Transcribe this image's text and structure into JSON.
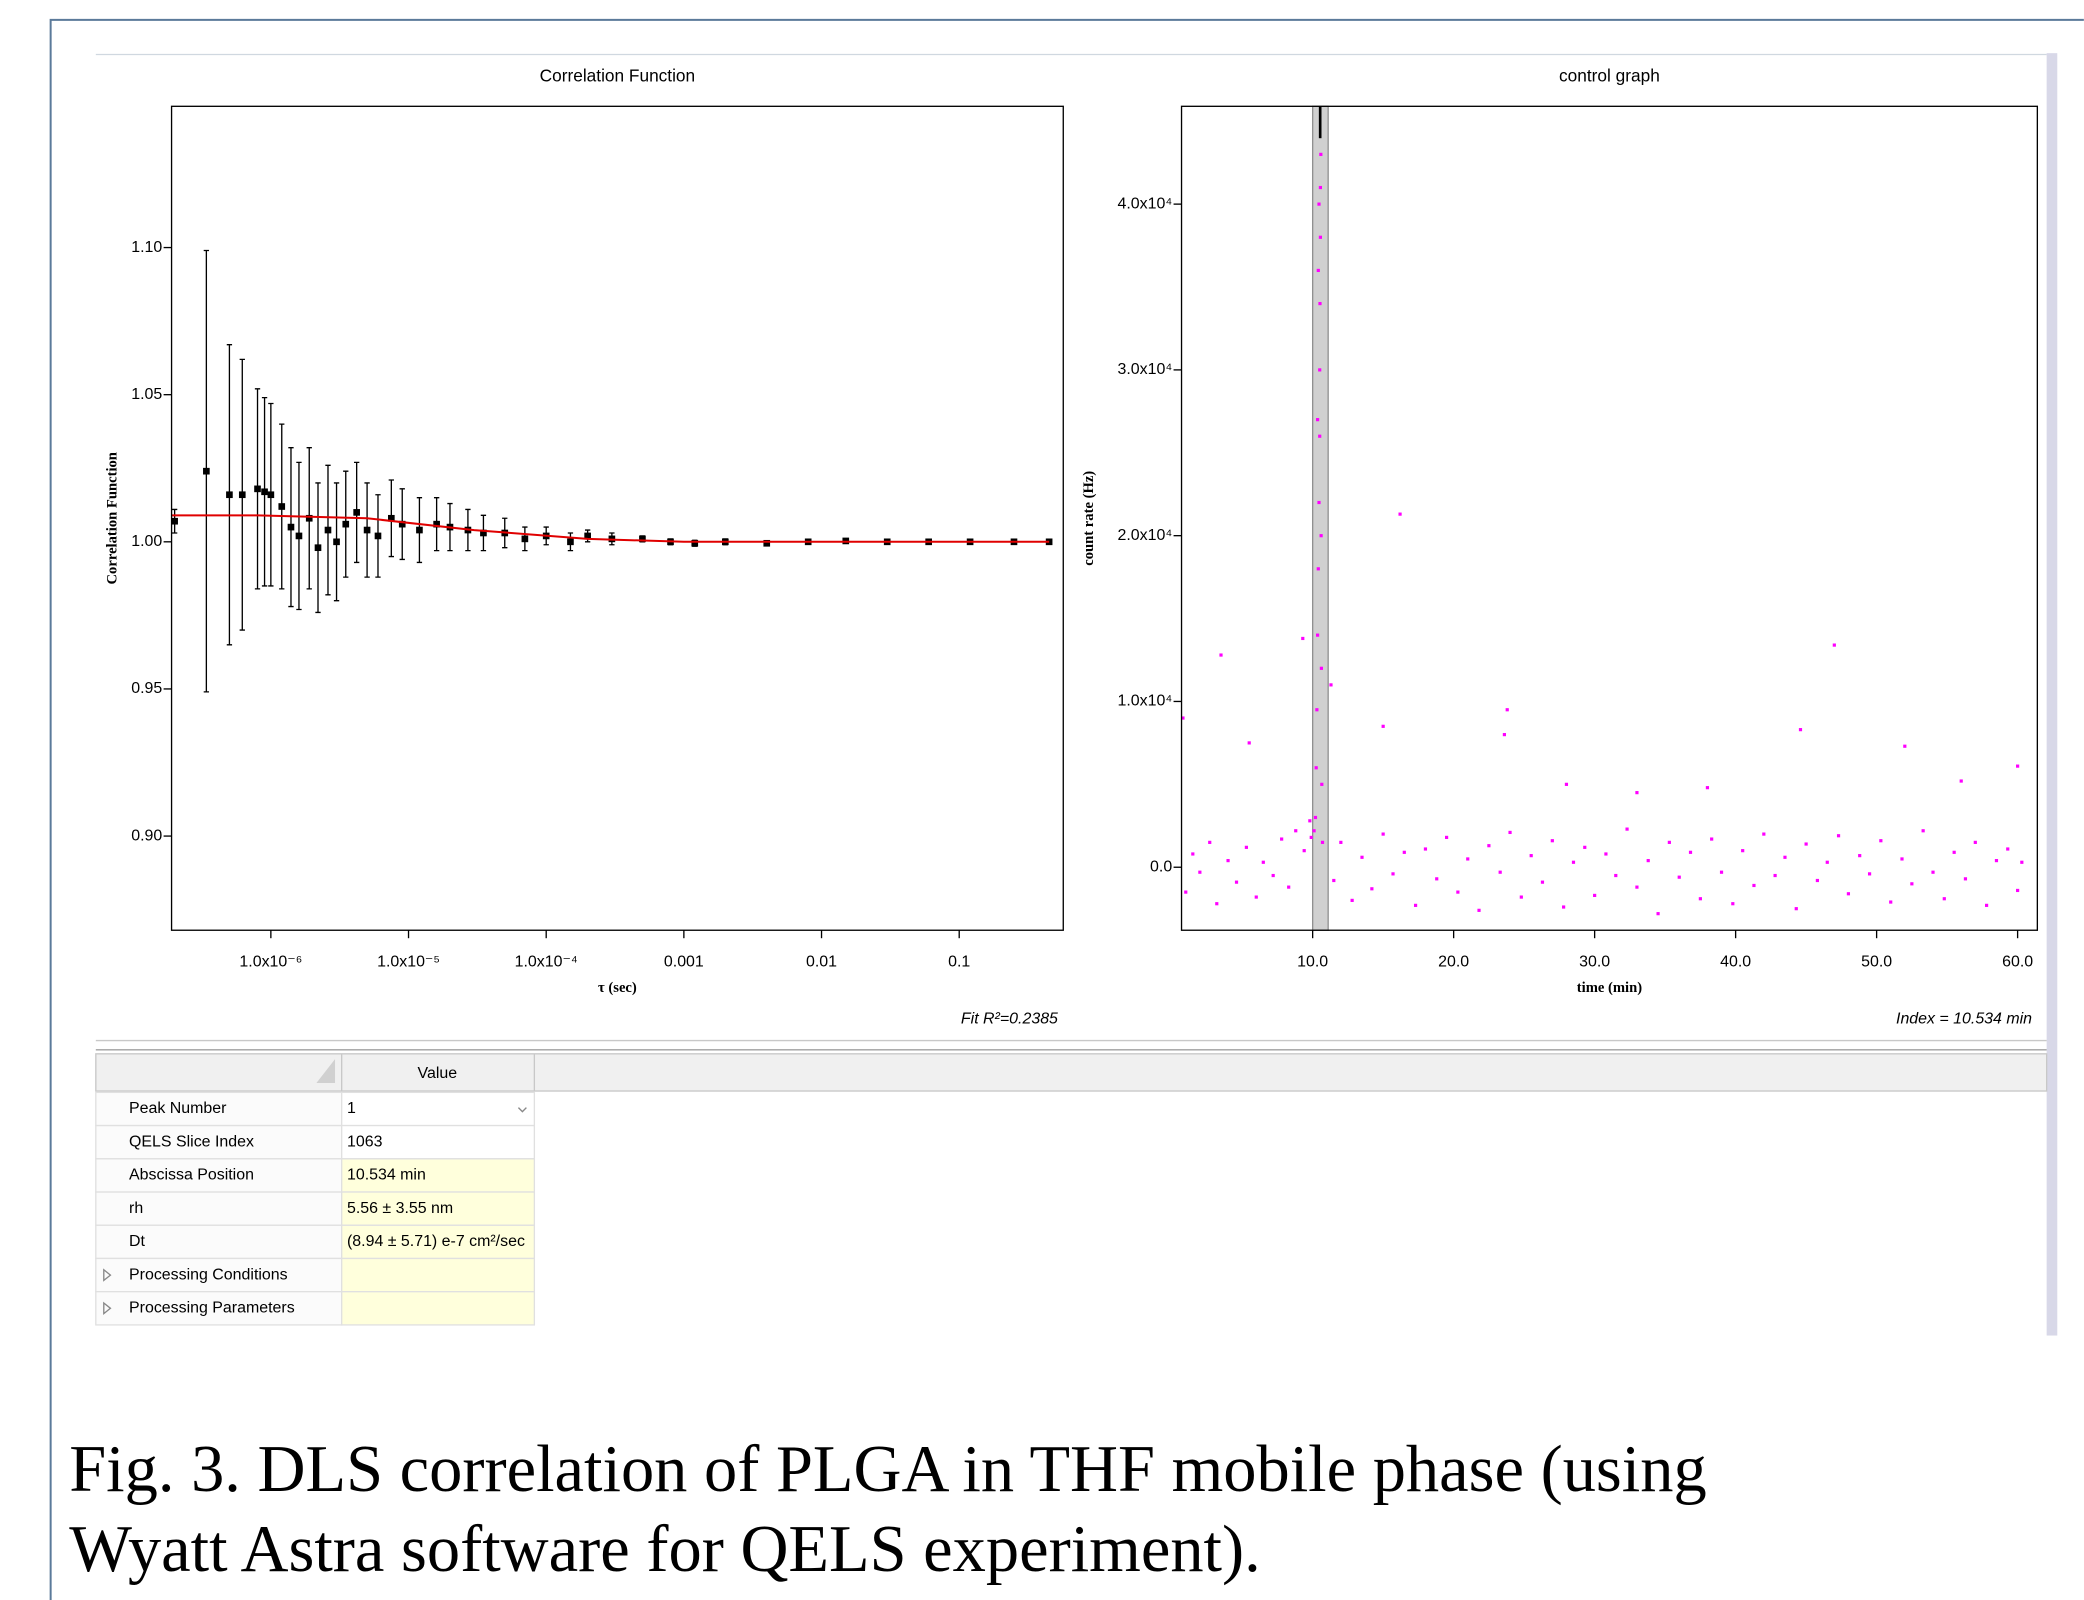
{
  "chart_data": [
    {
      "type": "scatter",
      "title": "Correlation Function",
      "x_label": "τ (sec)",
      "y_label": "Correlation Function",
      "annotation": "Fit R²=0.2385",
      "xlog": true,
      "xlim": [
        1.9e-07,
        0.57
      ],
      "ylim": [
        0.868,
        1.148
      ],
      "xticks": [
        {
          "value": 1e-06,
          "label": "1.0x10⁻⁶"
        },
        {
          "value": 1e-05,
          "label": "1.0x10⁻⁵"
        },
        {
          "value": 0.0001,
          "label": "1.0x10⁻⁴"
        },
        0.001,
        0.01,
        0.1
      ],
      "yticks": [
        {
          "value": 0.9,
          "label": "0.90"
        },
        0.95,
        {
          "value": 1,
          "label": "1.00"
        },
        1.05,
        {
          "value": 1.1,
          "label": "1.10"
        }
      ],
      "series": [
        {
          "color": "#000000",
          "x": [
            2e-07,
            3.4e-07,
            5e-07,
            6.2e-07,
            8e-07,
            9e-07,
            1e-06,
            1.2e-06,
            1.4e-06,
            1.6e-06,
            1.9e-06,
            2.2e-06,
            2.6e-06,
            3e-06,
            3.5e-06,
            4.2e-06,
            5e-06,
            6e-06,
            7.5e-06,
            9e-06,
            1.2e-05,
            1.6e-05,
            2e-05,
            2.7e-05,
            3.5e-05,
            5e-05,
            7e-05,
            0.0001,
            0.00015,
            0.0002,
            0.0003,
            0.0005,
            0.0008,
            0.0012,
            0.002,
            0.004,
            0.008,
            0.015,
            0.03,
            0.06,
            0.12,
            0.25,
            0.45
          ],
          "values": [
            1.007,
            1.024,
            1.016,
            1.016,
            1.018,
            1.017,
            1.016,
            1.012,
            1.005,
            1.002,
            1.008,
            0.998,
            1.004,
            1.0,
            1.006,
            1.01,
            1.004,
            1.002,
            1.008,
            1.006,
            1.004,
            1.006,
            1.005,
            1.004,
            1.003,
            1.003,
            1.001,
            1.002,
            1.0,
            1.002,
            1.001,
            1.001,
            1.0,
            0.9995,
            1.0,
            0.9995,
            1.0,
            1.0003,
            1.0,
            1.0,
            1.0,
            1.0,
            1.0
          ],
          "errors": [
            0.004,
            0.075,
            0.051,
            0.046,
            0.034,
            0.032,
            0.031,
            0.028,
            0.027,
            0.025,
            0.024,
            0.022,
            0.022,
            0.02,
            0.018,
            0.017,
            0.016,
            0.014,
            0.013,
            0.012,
            0.011,
            0.009,
            0.008,
            0.007,
            0.006,
            0.005,
            0.004,
            0.003,
            0.003,
            0.002,
            0.002,
            0.001,
            0.001,
            0.001,
            0.001,
            0.0005,
            0.0005,
            0.0005,
            0.0005,
            0.0005,
            0.0005,
            0.0005,
            0.0005
          ]
        },
        {
          "mode": "line",
          "color": "#e00000",
          "x": [
            1.9e-07,
            8e-07,
            5e-06,
            3e-05,
            0.0002,
            0.001,
            0.45
          ],
          "values": [
            1.009,
            1.009,
            1.008,
            1.004,
            1.001,
            1.0,
            1.0
          ]
        }
      ]
    },
    {
      "type": "scatter",
      "title": "control graph",
      "x_label": "time (min)",
      "y_label": "count rate (Hz)",
      "annotation": "Index = 10.534 min",
      "xlim": [
        0.7,
        61.4
      ],
      "ylim": [
        -3800,
        45900
      ],
      "xticks": [
        {
          "value": 10,
          "label": "10.0"
        },
        {
          "value": 20,
          "label": "20.0"
        },
        {
          "value": 30,
          "label": "30.0"
        },
        {
          "value": 40,
          "label": "40.0"
        },
        {
          "value": 50,
          "label": "50.0"
        },
        {
          "value": 60,
          "label": "60.0"
        }
      ],
      "yticks": [
        {
          "value": 0,
          "label": "0.0"
        },
        {
          "value": 10000,
          "label": "1.0x10⁴"
        },
        {
          "value": 20000,
          "label": "2.0x10⁴"
        },
        {
          "value": 30000,
          "label": "3.0x10⁴"
        },
        {
          "value": 40000,
          "label": "4.0x10⁴"
        }
      ],
      "selection": [
        10.0,
        11.1
      ],
      "index": 10.534,
      "series": [
        {
          "color": "#ff00ff",
          "x": [
            1,
            1.5,
            2,
            2.7,
            3.2,
            4,
            4.6,
            5.3,
            6,
            6.5,
            7.2,
            7.8,
            8.3,
            8.8,
            9.4,
            9.8,
            11.5,
            12,
            12.8,
            13.5,
            14.2,
            15,
            15.7,
            16.5,
            17.3,
            18,
            18.8,
            19.5,
            20.3,
            21,
            21.8,
            22.5,
            23.3,
            24,
            24.8,
            25.5,
            26.3,
            27,
            27.8,
            28.5,
            29.3,
            30,
            30.8,
            31.5,
            32.3,
            33,
            33.8,
            34.5,
            35.3,
            36,
            36.8,
            37.5,
            38.3,
            39,
            39.8,
            40.5,
            41.3,
            42,
            42.8,
            43.5,
            44.3,
            45,
            45.8,
            46.5,
            47.3,
            48,
            48.8,
            49.5,
            50.3,
            51,
            51.8,
            52.5,
            53.3,
            54,
            54.8,
            55.5,
            56.3,
            57,
            57.8,
            58.5,
            59.3,
            60,
            60.3,
            0.8,
            3.5,
            9.3,
            11.3,
            15,
            16.2,
            23.6,
            23.8,
            44.6,
            47,
            52,
            60,
            5.5,
            28,
            33,
            38,
            56,
            10.2,
            10.25,
            10.3,
            10.35,
            10.4,
            10.45,
            10.5,
            10.5,
            10.52,
            10.55,
            10.55,
            10.58,
            10.6,
            10.62,
            10.65,
            10.7,
            10.4,
            10.45,
            10.35,
            9.9,
            10.1
          ],
          "values": [
            -1500,
            800,
            -300,
            1500,
            -2200,
            400,
            -900,
            1200,
            -1800,
            300,
            -500,
            1700,
            -1200,
            2200,
            1000,
            2800,
            -800,
            1500,
            -2000,
            600,
            -1300,
            2000,
            -400,
            900,
            -2300,
            1100,
            -700,
            1800,
            -1500,
            500,
            -2600,
            1300,
            -300,
            2100,
            -1800,
            700,
            -900,
            1600,
            -2400,
            300,
            1200,
            -1700,
            800,
            -500,
            2300,
            -1200,
            400,
            -2800,
            1500,
            -600,
            900,
            -1900,
            1700,
            -300,
            -2200,
            1000,
            -1100,
            2000,
            -500,
            600,
            -2500,
            1400,
            -800,
            300,
            1900,
            -1600,
            700,
            -400,
            1600,
            -2100,
            500,
            -1000,
            2200,
            -300,
            -1900,
            900,
            -700,
            1500,
            -2300,
            400,
            1100,
            -1400,
            300,
            9000,
            12800,
            13800,
            11000,
            8500,
            21300,
            8000,
            9500,
            8300,
            13400,
            7300,
            6100,
            7500,
            5000,
            4500,
            4800,
            5200,
            3000,
            6000,
            9500,
            14000,
            18000,
            22000,
            26000,
            30000,
            34000,
            38000,
            41000,
            43000,
            20000,
            12000,
            5000,
            1500,
            36000,
            40000,
            27000,
            1800,
            2200
          ]
        }
      ]
    }
  ],
  "table": {
    "header": "Value",
    "rows": [
      [
        "Peak Number",
        "1"
      ],
      [
        "QELS Slice Index",
        "1063"
      ],
      [
        "Abscissa Position",
        "10.534 min"
      ],
      [
        "rh",
        "5.56 ± 3.55 nm"
      ],
      [
        "Dt",
        "(8.94 ± 5.71) e-7 cm²/sec"
      ],
      [
        "Processing Conditions"
      ],
      [
        "Processing Parameters"
      ]
    ]
  },
  "caption": [
    "Fig. 3. DLS correlation of PLGA in THF mobile phase (using",
    "Wyatt Astra software for QELS experiment)."
  ]
}
